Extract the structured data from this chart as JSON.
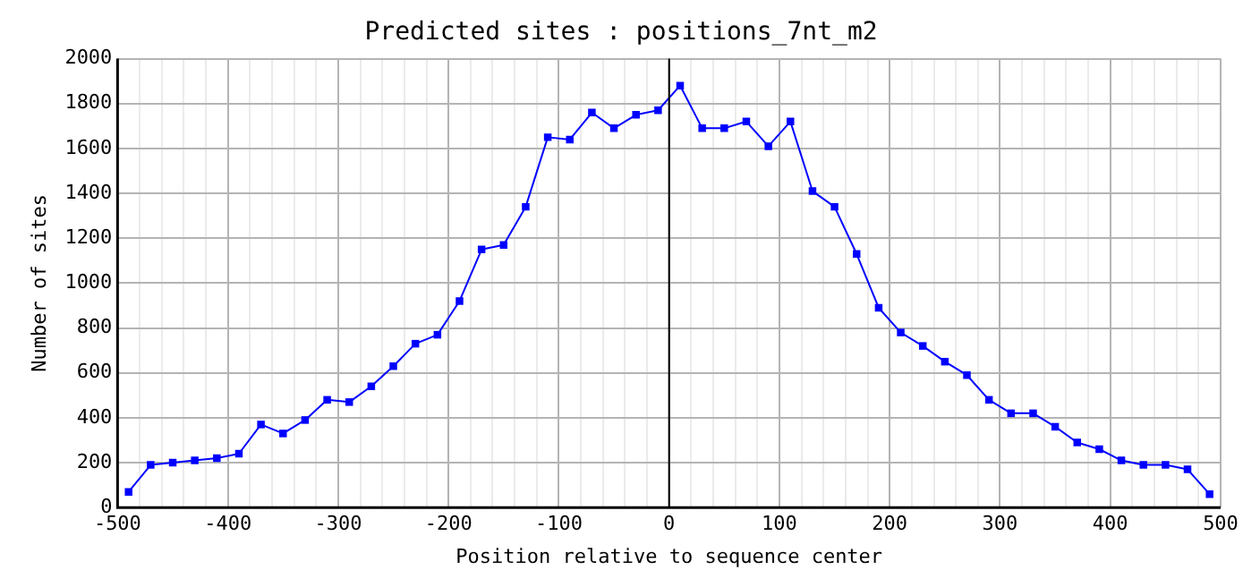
{
  "chart_data": {
    "type": "line",
    "title": "Predicted sites : positions_7nt_m2",
    "xlabel": "Position relative to sequence center",
    "ylabel": "Number of sites",
    "x": [
      -490,
      -470,
      -450,
      -430,
      -410,
      -390,
      -370,
      -350,
      -330,
      -310,
      -290,
      -270,
      -250,
      -230,
      -210,
      -190,
      -170,
      -150,
      -130,
      -110,
      -90,
      -70,
      -50,
      -30,
      -10,
      10,
      30,
      50,
      70,
      90,
      110,
      130,
      150,
      170,
      190,
      210,
      230,
      250,
      270,
      290,
      310,
      330,
      350,
      370,
      390,
      410,
      430,
      450,
      470,
      490
    ],
    "series": [
      {
        "color": "#0000ff",
        "values": [
          70,
          190,
          200,
          210,
          220,
          240,
          370,
          330,
          390,
          480,
          470,
          540,
          630,
          730,
          770,
          920,
          1150,
          1170,
          1340,
          1650,
          1640,
          1760,
          1690,
          1750,
          1770,
          1880,
          1690,
          1690,
          1720,
          1610,
          1720,
          1410,
          1340,
          1130,
          890,
          780,
          720,
          650,
          590,
          480,
          420,
          420,
          360,
          290,
          260,
          210,
          190,
          190,
          170,
          60
        ]
      }
    ],
    "xlim": [
      -500,
      500
    ],
    "xticks": [
      -500,
      {
        "value": -480,
        "label": null
      },
      {
        "value": -460,
        "label": null
      },
      {
        "value": -440,
        "label": null
      },
      {
        "value": -420,
        "label": null
      },
      -400,
      {
        "value": -380,
        "label": null
      },
      {
        "value": -360,
        "label": null
      },
      {
        "value": -340,
        "label": null
      },
      {
        "value": -320,
        "label": null
      },
      -300,
      {
        "value": -280,
        "label": null
      },
      {
        "value": -260,
        "label": null
      },
      {
        "value": -240,
        "label": null
      },
      {
        "value": -220,
        "label": null
      },
      -200,
      {
        "value": -180,
        "label": null
      },
      {
        "value": -160,
        "label": null
      },
      {
        "value": -140,
        "label": null
      },
      {
        "value": -120,
        "label": null
      },
      -100,
      {
        "value": -80,
        "label": null
      },
      {
        "value": -60,
        "label": null
      },
      {
        "value": -40,
        "label": null
      },
      {
        "value": -20,
        "label": null
      },
      0,
      {
        "value": 20,
        "label": null
      },
      {
        "value": 40,
        "label": null
      },
      {
        "value": 60,
        "label": null
      },
      {
        "value": 80,
        "label": null
      },
      100,
      {
        "value": 120,
        "label": null
      },
      {
        "value": 140,
        "label": null
      },
      {
        "value": 160,
        "label": null
      },
      {
        "value": 180,
        "label": null
      },
      200,
      {
        "value": 220,
        "label": null
      },
      {
        "value": 240,
        "label": null
      },
      {
        "value": 260,
        "label": null
      },
      {
        "value": 280,
        "label": null
      },
      300,
      {
        "value": 320,
        "label": null
      },
      {
        "value": 340,
        "label": null
      },
      {
        "value": 360,
        "label": null
      },
      {
        "value": 380,
        "label": null
      },
      400,
      {
        "value": 420,
        "label": null
      },
      {
        "value": 440,
        "label": null
      },
      {
        "value": 460,
        "label": null
      },
      {
        "value": 480,
        "label": null
      },
      500
    ],
    "ylim": [
      0,
      2000
    ],
    "yticks": [
      0,
      200,
      400,
      600,
      800,
      1000,
      1200,
      1400,
      1600,
      1800,
      2000
    ],
    "ref_lines": [
      {
        "axis": "x",
        "value": 0,
        "color": "#000000"
      }
    ],
    "grid": true,
    "marker": "square",
    "line_style": "solid",
    "legend": false
  }
}
